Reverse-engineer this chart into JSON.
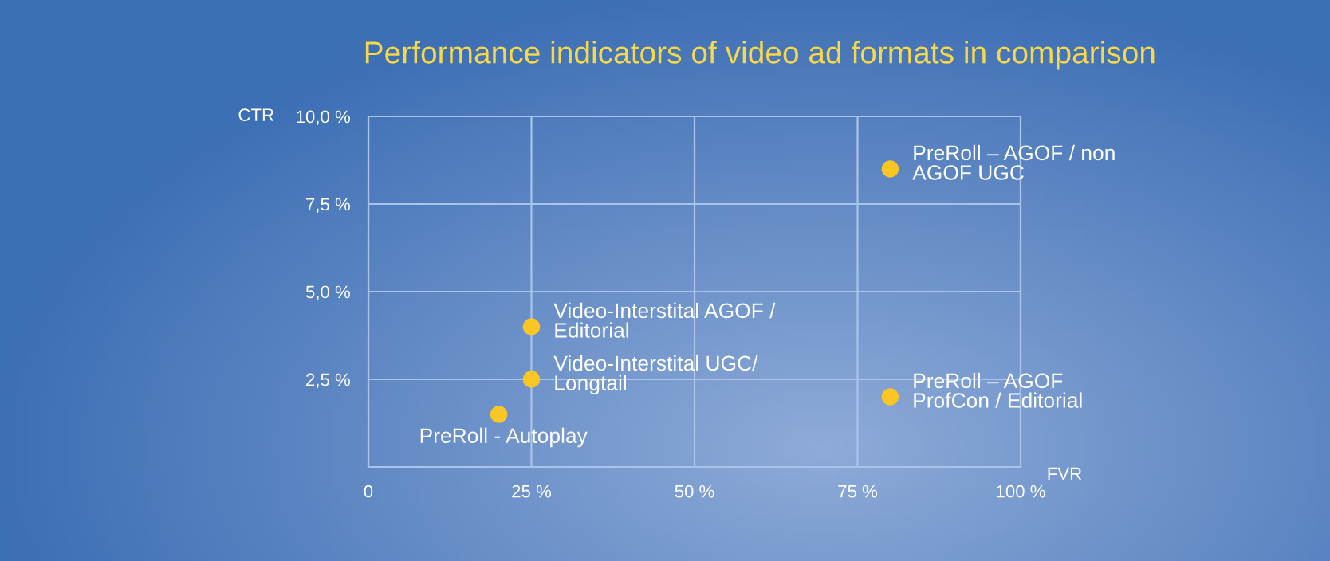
{
  "chart_data": {
    "type": "scatter",
    "title": "Performance indicators of video ad formats in comparison",
    "xlabel": "FVR",
    "ylabel": "CTR",
    "x": [
      20,
      25,
      25,
      80,
      80
    ],
    "series": [
      {
        "color": "#f9c623",
        "values": [
          1.5,
          4.0,
          2.5,
          8.5,
          2.0
        ]
      }
    ],
    "annotations": [
      {
        "text": "PreRoll - Autoplay",
        "x": 20,
        "y": 1.5
      },
      {
        "text": "Video-Interstital AGOF /\nEditorial",
        "x": 25,
        "y": 4.0
      },
      {
        "text": "Video-Interstital UGC/\nLongtail",
        "x": 25,
        "y": 2.5
      },
      {
        "text": "PreRoll – AGOF / non\nAGOF UGC",
        "x": 80,
        "y": 8.5
      },
      {
        "text": "PreRoll – AGOF\nProfCon / Editorial",
        "x": 80,
        "y": 2.0
      }
    ],
    "xlim": [
      0,
      100
    ],
    "ylim": [
      0,
      10
    ],
    "xticks": [
      0,
      {
        "value": 25,
        "label": "25 %"
      },
      {
        "value": 50,
        "label": "50 %"
      },
      {
        "value": 75,
        "label": "75 %"
      },
      {
        "value": 100,
        "label": "100 %"
      }
    ],
    "yticks": [
      {
        "value": 2.5,
        "label": "2,5 %"
      },
      {
        "value": 5,
        "label": "5,0 %"
      },
      {
        "value": 7.5,
        "label": "7,5 %"
      },
      {
        "value": 10,
        "label": "10,0 %"
      }
    ],
    "grid": true,
    "marker": "circle",
    "legend": false
  }
}
